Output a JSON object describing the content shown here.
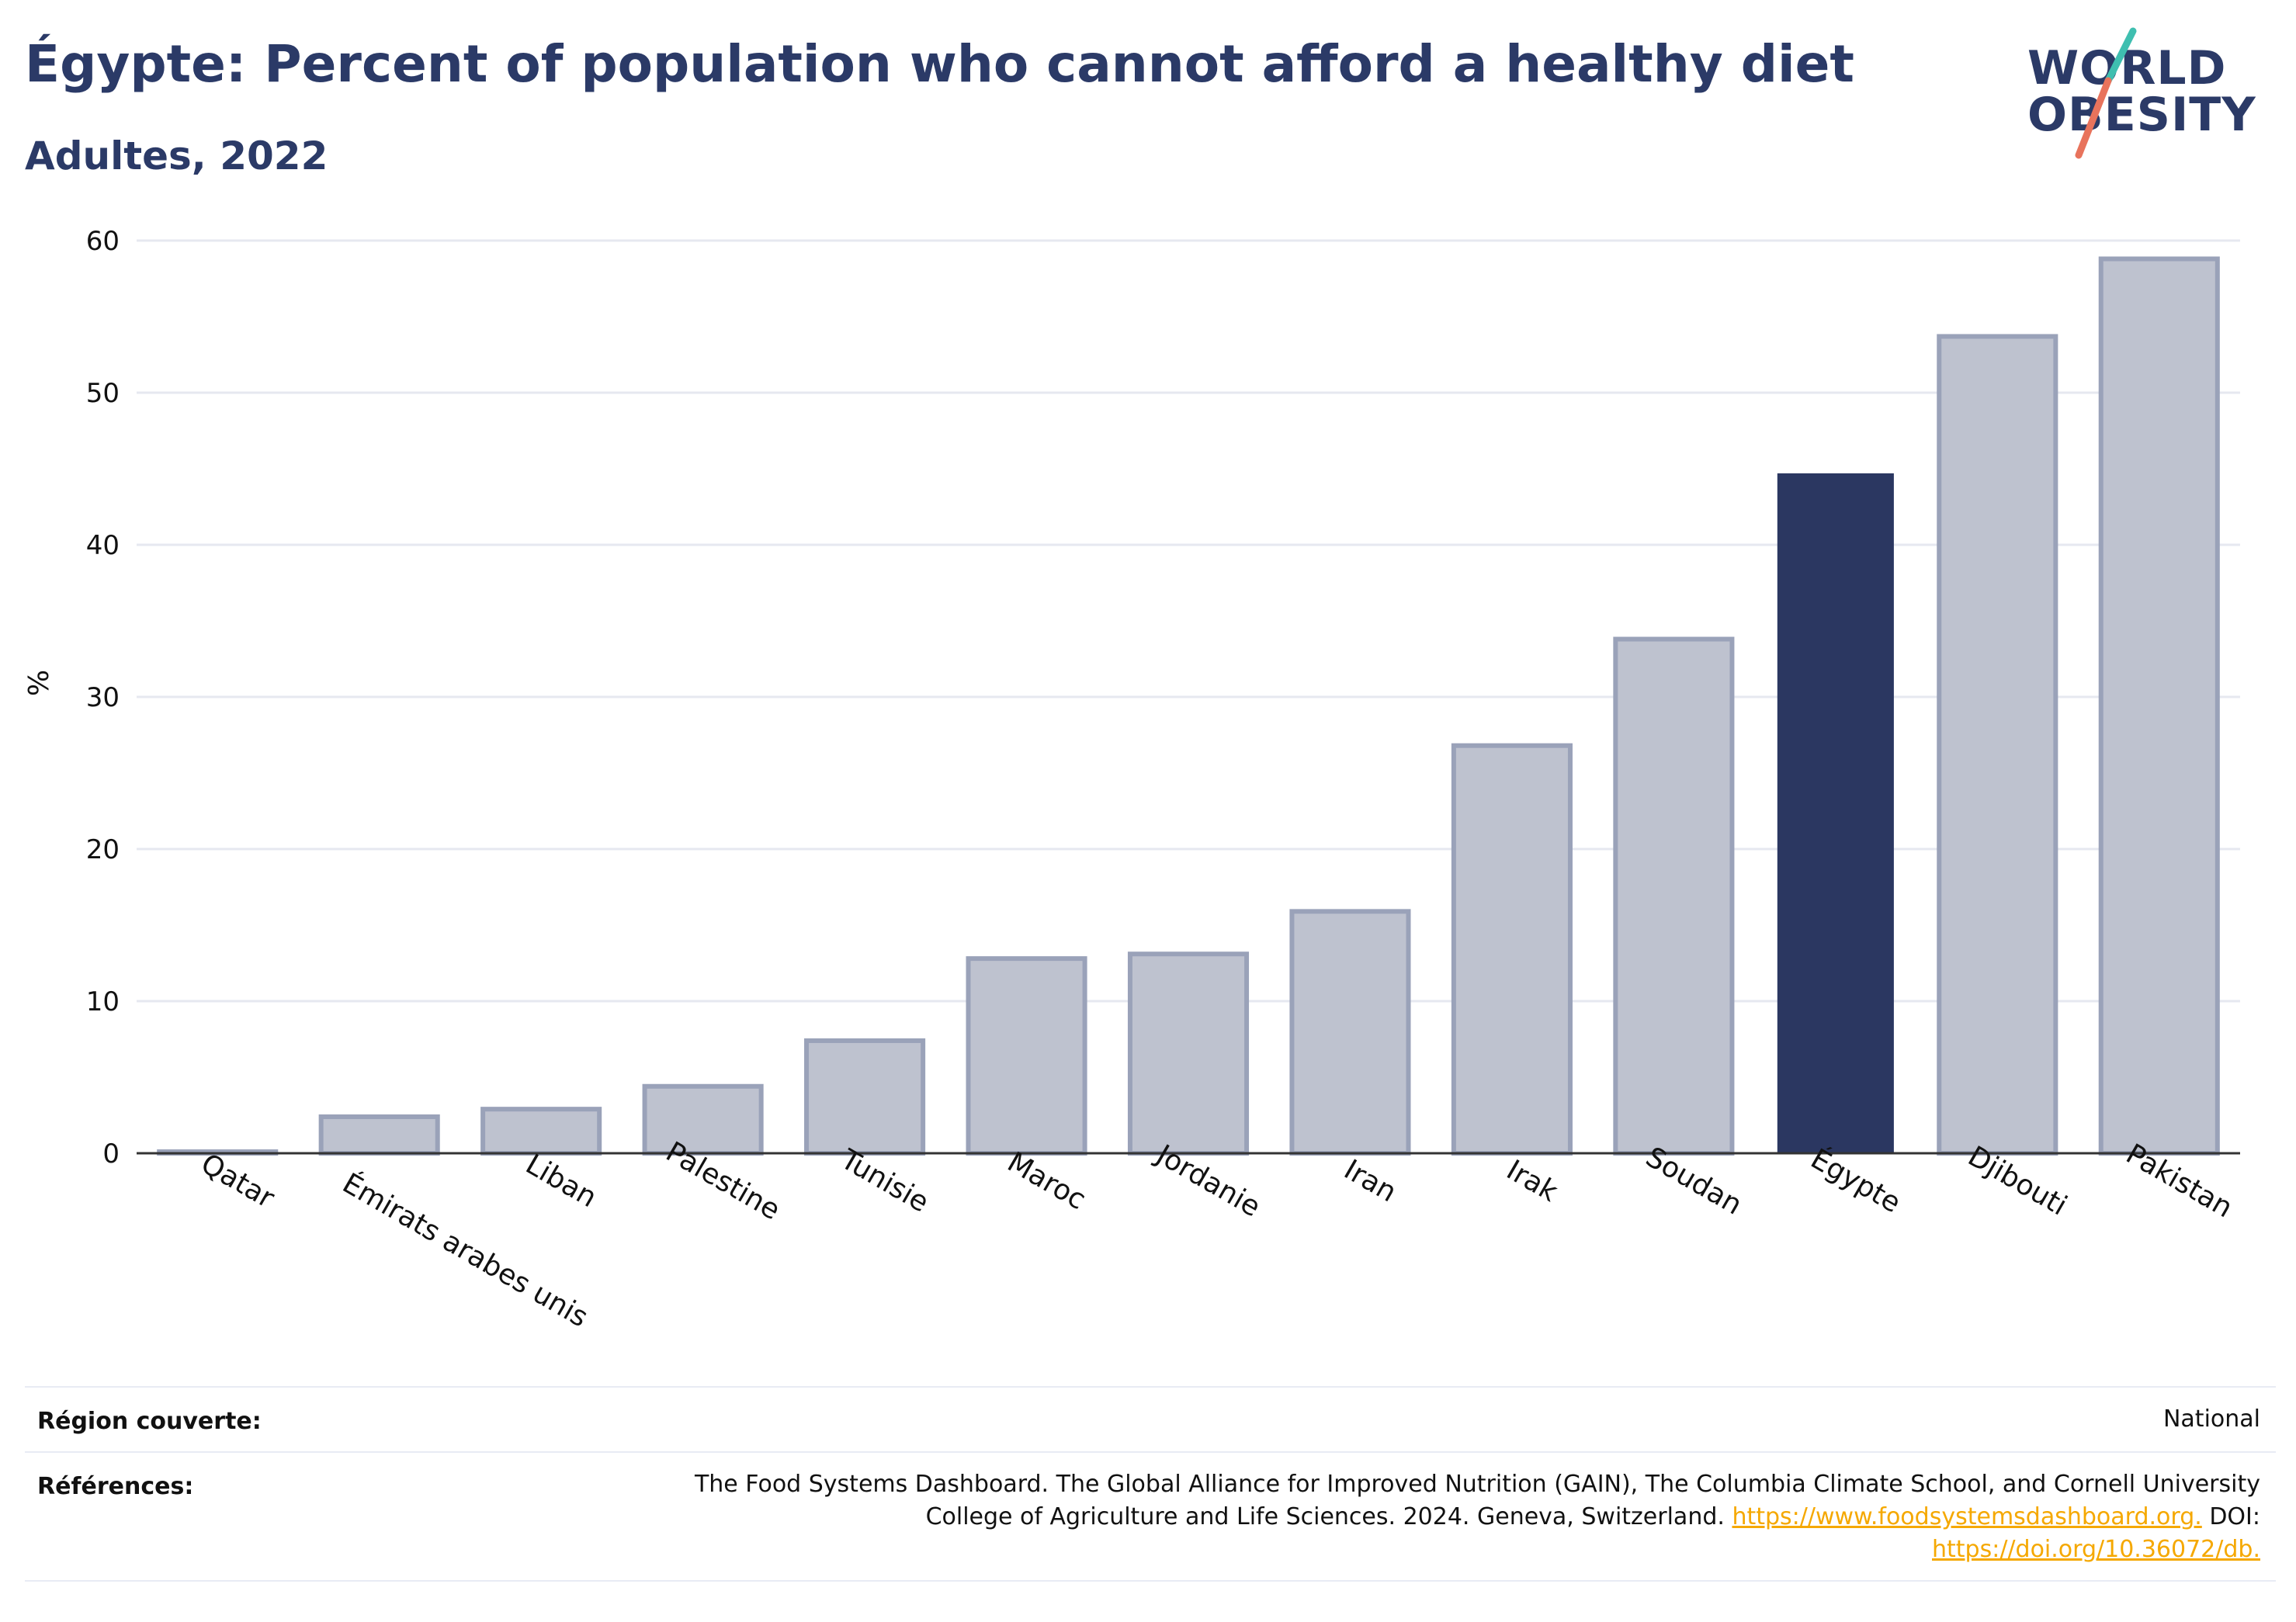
{
  "header": {
    "title": "Égypte: Percent of population who cannot afford a healthy diet",
    "subtitle": "Adultes, 2022"
  },
  "logo": {
    "line1": "WORLD",
    "line2": "OBESITY"
  },
  "colors": {
    "highlight": "#2b3761",
    "others": "#bec2cf",
    "others_outline": "#9aa2b9",
    "title": "#2b3a67",
    "link": "#f5a800",
    "logo_teal": "#3fbfb0",
    "logo_coral": "#e8735c"
  },
  "chart_data": {
    "type": "bar",
    "categories": [
      "Qatar",
      "Émirats arabes unis",
      "Liban",
      "Palestine",
      "Tunisie",
      "Maroc",
      "Jordanie",
      "Iran",
      "Irak",
      "Soudan",
      "Égypte",
      "Djibouti",
      "Pakistan"
    ],
    "values": [
      0.1,
      2.4,
      2.9,
      4.4,
      7.4,
      12.8,
      13.1,
      15.9,
      26.8,
      33.8,
      44.7,
      53.7,
      58.8
    ],
    "highlight": "Égypte",
    "ylabel": "%",
    "xlabel": "",
    "ylim": [
      0,
      60
    ],
    "yticks": [
      0,
      10,
      20,
      30,
      40,
      50,
      60
    ],
    "grid": true
  },
  "footer": {
    "region_label": "Région couverte:",
    "region_value": "National",
    "references_label": "Références:",
    "references_text_1": "The Food Systems Dashboard. The Global Alliance for Improved Nutrition (GAIN), The Columbia Climate School, and Cornell University",
    "references_text_2": "College of Agriculture and Life Sciences. 2024. Geneva, Switzerland.",
    "references_link_1": "https://www.foodsystemsdashboard.org.",
    "references_text_3": "DOI:",
    "references_link_2": "https://doi.org/10.36072/db."
  }
}
